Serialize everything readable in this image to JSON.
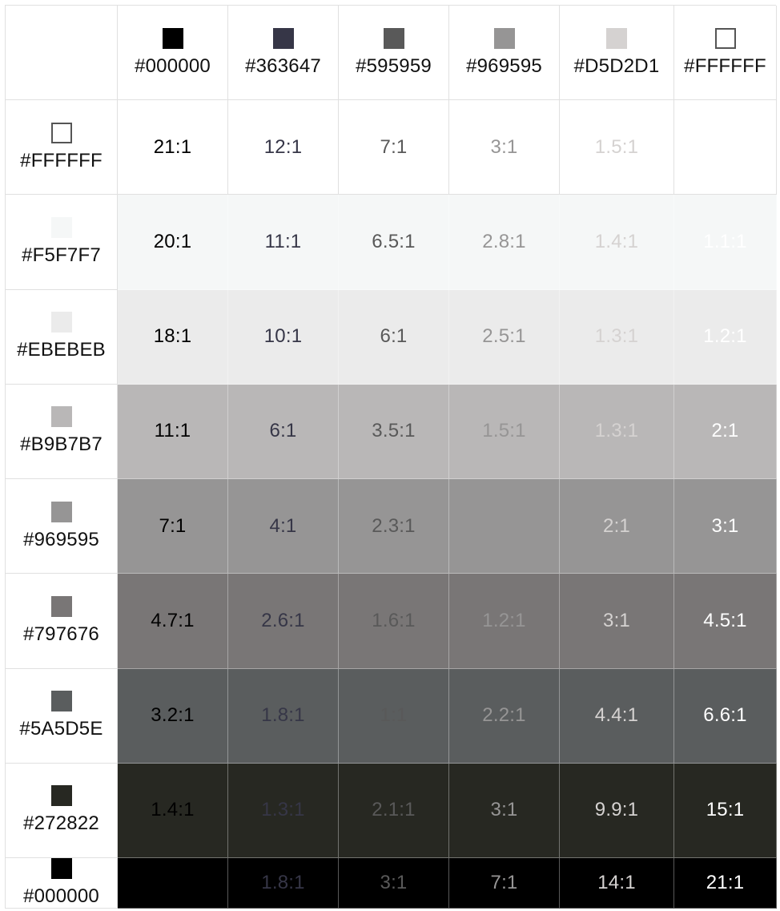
{
  "chart_data": {
    "type": "table",
    "columns": [
      {
        "hex": "#000000",
        "label": "#000000",
        "outline": false
      },
      {
        "hex": "#363647",
        "label": "#363647",
        "outline": false
      },
      {
        "hex": "#595959",
        "label": "#595959",
        "outline": false
      },
      {
        "hex": "#969595",
        "label": "#969595",
        "outline": false
      },
      {
        "hex": "#D5D2D1",
        "label": "#D5D2D1",
        "outline": false
      },
      {
        "hex": "#FFFFFF",
        "label": "#FFFFFF",
        "outline": true
      }
    ],
    "rows": [
      {
        "hex": "#FFFFFF",
        "label": "#FFFFFF",
        "outline": true,
        "ratios": [
          "21:1",
          "12:1",
          "7:1",
          "3:1",
          "1.5:1",
          ""
        ]
      },
      {
        "hex": "#F5F7F7",
        "label": "#F5F7F7",
        "outline": false,
        "ratios": [
          "20:1",
          "11:1",
          "6.5:1",
          "2.8:1",
          "1.4:1",
          "1.1:1"
        ]
      },
      {
        "hex": "#EBEBEB",
        "label": "#EBEBEB",
        "outline": false,
        "ratios": [
          "18:1",
          "10:1",
          "6:1",
          "2.5:1",
          "1.3:1",
          "1.2:1"
        ]
      },
      {
        "hex": "#B9B7B7",
        "label": "#B9B7B7",
        "outline": false,
        "ratios": [
          "11:1",
          "6:1",
          "3.5:1",
          "1.5:1",
          "1.3:1",
          "2:1"
        ]
      },
      {
        "hex": "#969595",
        "label": "#969595",
        "outline": false,
        "ratios": [
          "7:1",
          "4:1",
          "2.3:1",
          "",
          "2:1",
          "3:1"
        ]
      },
      {
        "hex": "#797676",
        "label": "#797676",
        "outline": false,
        "ratios": [
          "4.7:1",
          "2.6:1",
          "1.6:1",
          "1.2:1",
          "3:1",
          "4.5:1"
        ]
      },
      {
        "hex": "#5A5D5E",
        "label": "#5A5D5E",
        "outline": false,
        "ratios": [
          "3.2:1",
          "1.8:1",
          "1:1",
          "2.2:1",
          "4.4:1",
          "6.6:1"
        ]
      },
      {
        "hex": "#272822",
        "label": "#272822",
        "outline": false,
        "ratios": [
          "1.4:1",
          "1.3:1",
          "2.1:1",
          "3:1",
          "9.9:1",
          "15:1"
        ]
      },
      {
        "hex": "#000000",
        "label": "#000000",
        "outline": false,
        "ratios": [
          "",
          "1.8:1",
          "3:1",
          "7:1",
          "14:1",
          "21:1"
        ]
      }
    ]
  }
}
